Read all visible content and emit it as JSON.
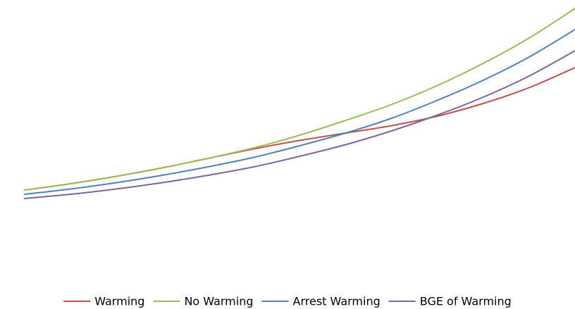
{
  "chart_data": {
    "type": "line",
    "title": "",
    "xlabel": "",
    "ylabel": "",
    "grid": false,
    "axes_visible": false,
    "legend_position": "bottom",
    "x": [
      0,
      1,
      2,
      3,
      4,
      5,
      6,
      7,
      8,
      9,
      10,
      11,
      12
    ],
    "xlim": [
      0,
      12
    ],
    "ylim": [
      0,
      10
    ],
    "series": [
      {
        "name": "Warming",
        "color": "#C0504D",
        "values": [
          1.0,
          1.3,
          1.65,
          2.05,
          2.5,
          2.95,
          3.35,
          3.7,
          4.05,
          4.5,
          5.1,
          5.85,
          6.8
        ]
      },
      {
        "name": "No Warming",
        "color": "#9BBB59",
        "values": [
          1.0,
          1.3,
          1.65,
          2.05,
          2.5,
          3.0,
          3.6,
          4.3,
          5.05,
          5.95,
          7.0,
          8.2,
          9.6
        ]
      },
      {
        "name": "Arrest Warming",
        "color": "#4F81BD",
        "values": [
          0.8,
          1.05,
          1.35,
          1.7,
          2.1,
          2.55,
          3.1,
          3.7,
          4.4,
          5.25,
          6.2,
          7.3,
          8.6
        ]
      },
      {
        "name": "BGE of Warming",
        "color": "#8064A2",
        "values": [
          0.6,
          0.8,
          1.05,
          1.35,
          1.7,
          2.1,
          2.6,
          3.15,
          3.8,
          4.55,
          5.4,
          6.4,
          7.6
        ]
      }
    ]
  }
}
